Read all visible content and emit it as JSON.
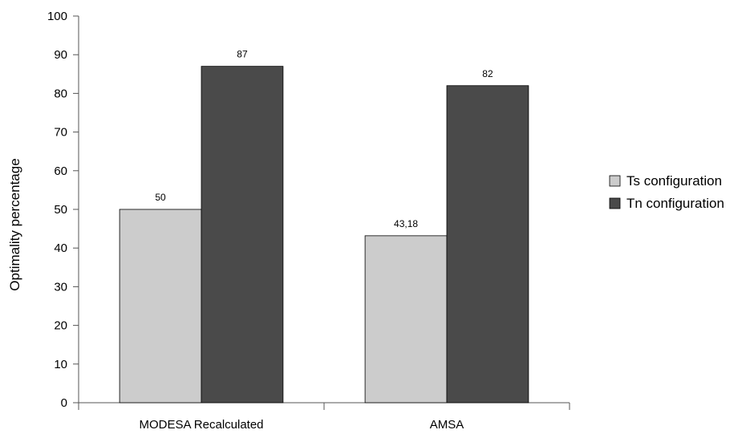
{
  "chart_data": {
    "type": "bar",
    "title": "",
    "xlabel": "",
    "ylabel": "Optimality percentage",
    "ylim": [
      0,
      100
    ],
    "yticks": [
      0,
      10,
      20,
      30,
      40,
      50,
      60,
      70,
      80,
      90,
      100
    ],
    "categories": [
      "MODESA Recalculated",
      "AMSA"
    ],
    "series": [
      {
        "name": "Ts configuration",
        "values": [
          50,
          43.18
        ],
        "labels": [
          "50",
          "43,18"
        ],
        "color": "#cccccc"
      },
      {
        "name": "Tn configuration",
        "values": [
          87,
          82
        ],
        "labels": [
          "87",
          "82"
        ],
        "color": "#4a4a4a"
      }
    ],
    "grid": false,
    "legend": "right"
  }
}
